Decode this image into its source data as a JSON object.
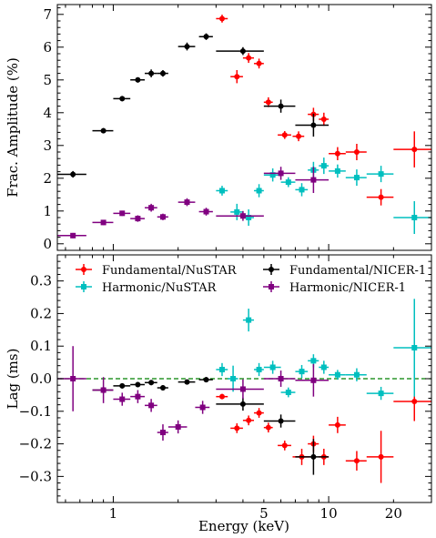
{
  "chart_data": [
    {
      "type": "scatter",
      "panel": "top",
      "ylabel": "Frac. Amplitude (%)",
      "xscale": "log",
      "xlim": [
        0.55,
        30
      ],
      "ylim": [
        -0.2,
        7.3
      ],
      "yticks": [
        0,
        1,
        2,
        3,
        4,
        5,
        6,
        7
      ],
      "series": [
        {
          "name": "Fundamental/NuSTAR",
          "marker": "circle",
          "color": "#ff0000",
          "points": [
            {
              "x": 3.2,
              "xlo": 3.0,
              "xhi": 3.4,
              "y": 6.87,
              "yerr": 0.12
            },
            {
              "x": 3.75,
              "xlo": 3.5,
              "xhi": 4.0,
              "y": 5.1,
              "yerr": 0.2
            },
            {
              "x": 4.25,
              "xlo": 4.0,
              "xhi": 4.5,
              "y": 5.67,
              "yerr": 0.15
            },
            {
              "x": 4.75,
              "xlo": 4.5,
              "xhi": 5.0,
              "y": 5.5,
              "yerr": 0.15
            },
            {
              "x": 5.25,
              "xlo": 5.0,
              "xhi": 5.5,
              "y": 4.32,
              "yerr": 0.15
            },
            {
              "x": 6.25,
              "xlo": 5.8,
              "xhi": 6.7,
              "y": 3.32,
              "yerr": 0.12
            },
            {
              "x": 7.25,
              "xlo": 6.8,
              "xhi": 7.7,
              "y": 3.28,
              "yerr": 0.15
            },
            {
              "x": 8.5,
              "xlo": 8.0,
              "xhi": 9.0,
              "y": 3.95,
              "yerr": 0.2
            },
            {
              "x": 9.5,
              "xlo": 9.0,
              "xhi": 10.0,
              "y": 3.8,
              "yerr": 0.2
            },
            {
              "x": 11.0,
              "xlo": 10.0,
              "xhi": 12.0,
              "y": 2.75,
              "yerr": 0.2
            },
            {
              "x": 13.5,
              "xlo": 12.0,
              "xhi": 15.0,
              "y": 2.8,
              "yerr": 0.25
            },
            {
              "x": 17.5,
              "xlo": 15.0,
              "xhi": 20.0,
              "y": 1.42,
              "yerr": 0.25
            },
            {
              "x": 25.0,
              "xlo": 20.0,
              "xhi": 30.0,
              "y": 2.88,
              "yerr": 0.55
            }
          ]
        },
        {
          "name": "Fundamental/NICER-1",
          "marker": "circle",
          "color": "#000000",
          "points": [
            {
              "x": 0.65,
              "xlo": 0.55,
              "xhi": 0.75,
              "y": 2.12,
              "yerr": 0.1
            },
            {
              "x": 0.9,
              "xlo": 0.8,
              "xhi": 1.0,
              "y": 3.45,
              "yerr": 0.08
            },
            {
              "x": 1.1,
              "xlo": 1.0,
              "xhi": 1.2,
              "y": 4.43,
              "yerr": 0.08
            },
            {
              "x": 1.3,
              "xlo": 1.2,
              "xhi": 1.4,
              "y": 5.0,
              "yerr": 0.08
            },
            {
              "x": 1.5,
              "xlo": 1.4,
              "xhi": 1.6,
              "y": 5.2,
              "yerr": 0.12
            },
            {
              "x": 1.7,
              "xlo": 1.6,
              "xhi": 1.8,
              "y": 5.2,
              "yerr": 0.1
            },
            {
              "x": 2.2,
              "xlo": 2.0,
              "xhi": 2.4,
              "y": 6.02,
              "yerr": 0.12
            },
            {
              "x": 2.7,
              "xlo": 2.5,
              "xhi": 2.9,
              "y": 6.32,
              "yerr": 0.1
            },
            {
              "x": 4.0,
              "xlo": 3.0,
              "xhi": 5.0,
              "y": 5.88,
              "yerr": 0.12
            },
            {
              "x": 6.0,
              "xlo": 5.0,
              "xhi": 7.0,
              "y": 4.2,
              "yerr": 0.2
            },
            {
              "x": 8.5,
              "xlo": 7.0,
              "xhi": 10.0,
              "y": 3.62,
              "yerr": 0.35
            }
          ]
        },
        {
          "name": "Harmonic/NuSTAR",
          "marker": "square",
          "color": "#00bfbf",
          "points": [
            {
              "x": 3.2,
              "xlo": 3.0,
              "xhi": 3.4,
              "y": 1.62,
              "yerr": 0.15
            },
            {
              "x": 3.75,
              "xlo": 3.5,
              "xhi": 4.0,
              "y": 0.97,
              "yerr": 0.25
            },
            {
              "x": 4.25,
              "xlo": 4.0,
              "xhi": 4.5,
              "y": 0.8,
              "yerr": 0.25
            },
            {
              "x": 4.75,
              "xlo": 4.5,
              "xhi": 5.0,
              "y": 1.62,
              "yerr": 0.2
            },
            {
              "x": 5.5,
              "xlo": 5.0,
              "xhi": 6.0,
              "y": 2.1,
              "yerr": 0.2
            },
            {
              "x": 6.5,
              "xlo": 6.0,
              "xhi": 7.0,
              "y": 1.88,
              "yerr": 0.15
            },
            {
              "x": 7.5,
              "xlo": 7.0,
              "xhi": 8.0,
              "y": 1.65,
              "yerr": 0.2
            },
            {
              "x": 8.5,
              "xlo": 8.0,
              "xhi": 9.0,
              "y": 2.25,
              "yerr": 0.25
            },
            {
              "x": 9.5,
              "xlo": 9.0,
              "xhi": 10.0,
              "y": 2.38,
              "yerr": 0.25
            },
            {
              "x": 11.0,
              "xlo": 10.0,
              "xhi": 12.0,
              "y": 2.22,
              "yerr": 0.2
            },
            {
              "x": 13.5,
              "xlo": 12.0,
              "xhi": 15.0,
              "y": 2.02,
              "yerr": 0.25
            },
            {
              "x": 17.5,
              "xlo": 15.0,
              "xhi": 20.0,
              "y": 2.13,
              "yerr": 0.25
            },
            {
              "x": 25.0,
              "xlo": 20.0,
              "xhi": 30.0,
              "y": 0.8,
              "yerr": 0.5
            }
          ]
        },
        {
          "name": "Harmonic/NICER-1",
          "marker": "square",
          "color": "#800080",
          "points": [
            {
              "x": 0.65,
              "xlo": 0.55,
              "xhi": 0.75,
              "y": 0.25,
              "yerr": 0.08
            },
            {
              "x": 0.9,
              "xlo": 0.8,
              "xhi": 1.0,
              "y": 0.65,
              "yerr": 0.08
            },
            {
              "x": 1.1,
              "xlo": 1.0,
              "xhi": 1.2,
              "y": 0.93,
              "yerr": 0.08
            },
            {
              "x": 1.3,
              "xlo": 1.2,
              "xhi": 1.4,
              "y": 0.77,
              "yerr": 0.1
            },
            {
              "x": 1.5,
              "xlo": 1.4,
              "xhi": 1.6,
              "y": 1.1,
              "yerr": 0.12
            },
            {
              "x": 1.7,
              "xlo": 1.6,
              "xhi": 1.8,
              "y": 0.82,
              "yerr": 0.1
            },
            {
              "x": 2.2,
              "xlo": 2.0,
              "xhi": 2.4,
              "y": 1.27,
              "yerr": 0.12
            },
            {
              "x": 2.7,
              "xlo": 2.5,
              "xhi": 2.9,
              "y": 0.98,
              "yerr": 0.12
            },
            {
              "x": 4.0,
              "xlo": 3.0,
              "xhi": 5.0,
              "y": 0.85,
              "yerr": 0.15
            },
            {
              "x": 6.0,
              "xlo": 5.0,
              "xhi": 7.0,
              "y": 2.15,
              "yerr": 0.2
            },
            {
              "x": 8.5,
              "xlo": 7.0,
              "xhi": 10.0,
              "y": 1.95,
              "yerr": 0.4
            }
          ]
        }
      ]
    },
    {
      "type": "scatter",
      "panel": "bottom",
      "xlabel": "Energy (keV)",
      "ylabel": "Lag (ms)",
      "xscale": "log",
      "xlim": [
        0.55,
        30
      ],
      "ylim": [
        -0.38,
        0.38
      ],
      "yticks": [
        -0.3,
        -0.2,
        -0.1,
        0.0,
        0.1,
        0.2,
        0.3
      ],
      "xticks": [
        1,
        5,
        10,
        20
      ],
      "reference_line": {
        "y": 0.0,
        "color": "#008000",
        "style": "dashed"
      },
      "legend": {
        "position": "top",
        "columns": 2
      },
      "series": [
        {
          "name": "Fundamental/NuSTAR",
          "marker": "circle",
          "color": "#ff0000",
          "points": [
            {
              "x": 3.2,
              "xlo": 3.0,
              "xhi": 3.4,
              "y": -0.055,
              "yerr": 0.008
            },
            {
              "x": 3.75,
              "xlo": 3.5,
              "xhi": 4.0,
              "y": -0.152,
              "yerr": 0.015
            },
            {
              "x": 4.25,
              "xlo": 4.0,
              "xhi": 4.5,
              "y": -0.128,
              "yerr": 0.015
            },
            {
              "x": 4.75,
              "xlo": 4.5,
              "xhi": 5.0,
              "y": -0.105,
              "yerr": 0.015
            },
            {
              "x": 5.25,
              "xlo": 5.0,
              "xhi": 5.5,
              "y": -0.15,
              "yerr": 0.015
            },
            {
              "x": 6.25,
              "xlo": 5.8,
              "xhi": 6.7,
              "y": -0.205,
              "yerr": 0.015
            },
            {
              "x": 7.5,
              "xlo": 6.8,
              "xhi": 8.2,
              "y": -0.24,
              "yerr": 0.025
            },
            {
              "x": 8.5,
              "xlo": 8.0,
              "xhi": 9.0,
              "y": -0.2,
              "yerr": 0.025
            },
            {
              "x": 9.5,
              "xlo": 9.0,
              "xhi": 10.0,
              "y": -0.24,
              "yerr": 0.025
            },
            {
              "x": 11.0,
              "xlo": 10.0,
              "xhi": 12.0,
              "y": -0.142,
              "yerr": 0.025
            },
            {
              "x": 13.5,
              "xlo": 12.0,
              "xhi": 15.0,
              "y": -0.252,
              "yerr": 0.03
            },
            {
              "x": 17.5,
              "xlo": 15.0,
              "xhi": 20.0,
              "y": -0.24,
              "yerr": 0.08
            },
            {
              "x": 25.0,
              "xlo": 20.0,
              "xhi": 30.0,
              "y": -0.07,
              "yerr": 0.06
            }
          ]
        },
        {
          "name": "Fundamental/NICER-1",
          "marker": "circle",
          "color": "#000000",
          "points": [
            {
              "x": 0.9,
              "xlo": 0.8,
              "xhi": 1.0,
              "y": -0.035,
              "yerr": 0.01
            },
            {
              "x": 1.1,
              "xlo": 1.0,
              "xhi": 1.2,
              "y": -0.022,
              "yerr": 0.008
            },
            {
              "x": 1.3,
              "xlo": 1.2,
              "xhi": 1.4,
              "y": -0.018,
              "yerr": 0.008
            },
            {
              "x": 1.5,
              "xlo": 1.4,
              "xhi": 1.6,
              "y": -0.012,
              "yerr": 0.008
            },
            {
              "x": 1.7,
              "xlo": 1.6,
              "xhi": 1.8,
              "y": -0.028,
              "yerr": 0.008
            },
            {
              "x": 2.2,
              "xlo": 2.0,
              "xhi": 2.4,
              "y": -0.01,
              "yerr": 0.008
            },
            {
              "x": 2.7,
              "xlo": 2.5,
              "xhi": 2.9,
              "y": -0.003,
              "yerr": 0.008
            },
            {
              "x": 4.0,
              "xlo": 3.0,
              "xhi": 5.0,
              "y": -0.078,
              "yerr": 0.02
            },
            {
              "x": 6.0,
              "xlo": 5.0,
              "xhi": 7.0,
              "y": -0.13,
              "yerr": 0.02
            },
            {
              "x": 8.5,
              "xlo": 7.0,
              "xhi": 10.0,
              "y": -0.24,
              "yerr": 0.055
            }
          ]
        },
        {
          "name": "Harmonic/NuSTAR",
          "marker": "square",
          "color": "#00bfbf",
          "points": [
            {
              "x": 3.2,
              "xlo": 3.0,
              "xhi": 3.4,
              "y": 0.028,
              "yerr": 0.02
            },
            {
              "x": 3.6,
              "xlo": 3.4,
              "xhi": 3.8,
              "y": 0.0,
              "yerr": 0.04
            },
            {
              "x": 4.25,
              "xlo": 4.0,
              "xhi": 4.5,
              "y": 0.18,
              "yerr": 0.035
            },
            {
              "x": 4.75,
              "xlo": 4.5,
              "xhi": 5.0,
              "y": 0.028,
              "yerr": 0.02
            },
            {
              "x": 5.5,
              "xlo": 5.0,
              "xhi": 6.0,
              "y": 0.035,
              "yerr": 0.02
            },
            {
              "x": 6.5,
              "xlo": 6.0,
              "xhi": 7.0,
              "y": -0.042,
              "yerr": 0.015
            },
            {
              "x": 7.5,
              "xlo": 7.0,
              "xhi": 8.0,
              "y": 0.022,
              "yerr": 0.02
            },
            {
              "x": 8.5,
              "xlo": 8.0,
              "xhi": 9.0,
              "y": 0.055,
              "yerr": 0.02
            },
            {
              "x": 9.5,
              "xlo": 9.0,
              "xhi": 10.0,
              "y": 0.035,
              "yerr": 0.02
            },
            {
              "x": 11.0,
              "xlo": 10.0,
              "xhi": 12.0,
              "y": 0.012,
              "yerr": 0.015
            },
            {
              "x": 13.5,
              "xlo": 12.0,
              "xhi": 15.0,
              "y": 0.012,
              "yerr": 0.02
            },
            {
              "x": 17.5,
              "xlo": 15.0,
              "xhi": 20.0,
              "y": -0.045,
              "yerr": 0.02
            },
            {
              "x": 25.0,
              "xlo": 20.0,
              "xhi": 30.0,
              "y": 0.095,
              "yerr": 0.15
            }
          ]
        },
        {
          "name": "Harmonic/NICER-1",
          "marker": "square",
          "color": "#800080",
          "points": [
            {
              "x": 0.65,
              "xlo": 0.55,
              "xhi": 0.75,
              "y": 0.0,
              "yerr": 0.1
            },
            {
              "x": 0.9,
              "xlo": 0.8,
              "xhi": 1.0,
              "y": -0.035,
              "yerr": 0.04
            },
            {
              "x": 1.1,
              "xlo": 1.0,
              "xhi": 1.2,
              "y": -0.063,
              "yerr": 0.02
            },
            {
              "x": 1.3,
              "xlo": 1.2,
              "xhi": 1.4,
              "y": -0.055,
              "yerr": 0.02
            },
            {
              "x": 1.5,
              "xlo": 1.4,
              "xhi": 1.6,
              "y": -0.082,
              "yerr": 0.02
            },
            {
              "x": 1.7,
              "xlo": 1.6,
              "xhi": 1.8,
              "y": -0.165,
              "yerr": 0.025
            },
            {
              "x": 2.0,
              "xlo": 1.8,
              "xhi": 2.2,
              "y": -0.148,
              "yerr": 0.02
            },
            {
              "x": 2.6,
              "xlo": 2.4,
              "xhi": 2.8,
              "y": -0.088,
              "yerr": 0.02
            },
            {
              "x": 4.0,
              "xlo": 3.0,
              "xhi": 5.0,
              "y": -0.032,
              "yerr": 0.03
            },
            {
              "x": 6.0,
              "xlo": 5.0,
              "xhi": 7.0,
              "y": 0.0,
              "yerr": 0.025
            },
            {
              "x": 8.5,
              "xlo": 7.0,
              "xhi": 10.0,
              "y": -0.005,
              "yerr": 0.05
            }
          ]
        }
      ]
    }
  ]
}
